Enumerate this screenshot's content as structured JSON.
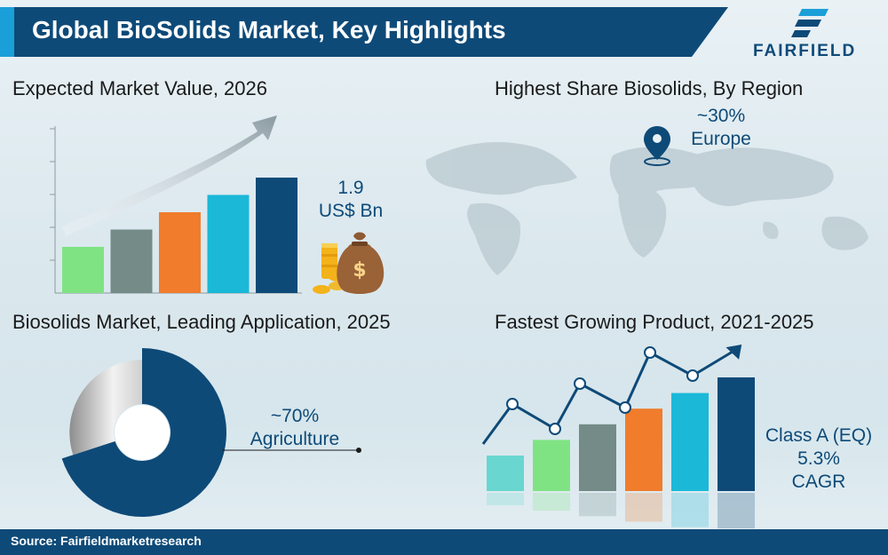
{
  "header": {
    "title": "Global BioSolids Market, Key Highlights",
    "logo_text": "FAIRFIELD",
    "logo_icon": "fairfield-stripes-icon"
  },
  "market_value": {
    "title": "Expected Market Value, 2026",
    "value": "1.9",
    "unit": "US$ Bn",
    "icon": "money-bag-coins-icon"
  },
  "region_share": {
    "title": "Highest Share Biosolids, By Region",
    "share": "~30%",
    "region": "Europe",
    "icon": "map-pin-icon"
  },
  "leading_application": {
    "title": "Biosolids Market, Leading Application, 2025",
    "share": "~70%",
    "application": "Agriculture",
    "share_fraction": 0.7
  },
  "fastest_product": {
    "title": "Fastest Growing Product, 2021-2025",
    "product": "Class A (EQ)",
    "cagr_value": "5.3%",
    "cagr_label": "CAGR"
  },
  "colors": {
    "navy": "#0e4a78",
    "cyan": "#1bb8d8",
    "orange": "#f07c2c",
    "slate": "#748b88",
    "green": "#7fe383",
    "mint": "#69d6cf"
  },
  "footer": {
    "source": "Source: Fairfieldmarketresearch"
  },
  "chart_data": [
    {
      "type": "bar",
      "title": "Expected Market Value, 2026",
      "values": [
        1,
        2,
        3,
        4,
        5
      ],
      "colors": [
        "#7fe383",
        "#748b88",
        "#f07c2c",
        "#1bb8d8",
        "#0e4a78"
      ],
      "trend": "increasing"
    },
    {
      "type": "bar",
      "title": "Fastest Growing Product, 2021-2025",
      "values": [
        1,
        2,
        3,
        4,
        5,
        6
      ],
      "colors": [
        "#69d6cf",
        "#7fe383",
        "#748b88",
        "#f07c2c",
        "#1bb8d8",
        "#0e4a78"
      ],
      "trend": "increasing"
    }
  ]
}
